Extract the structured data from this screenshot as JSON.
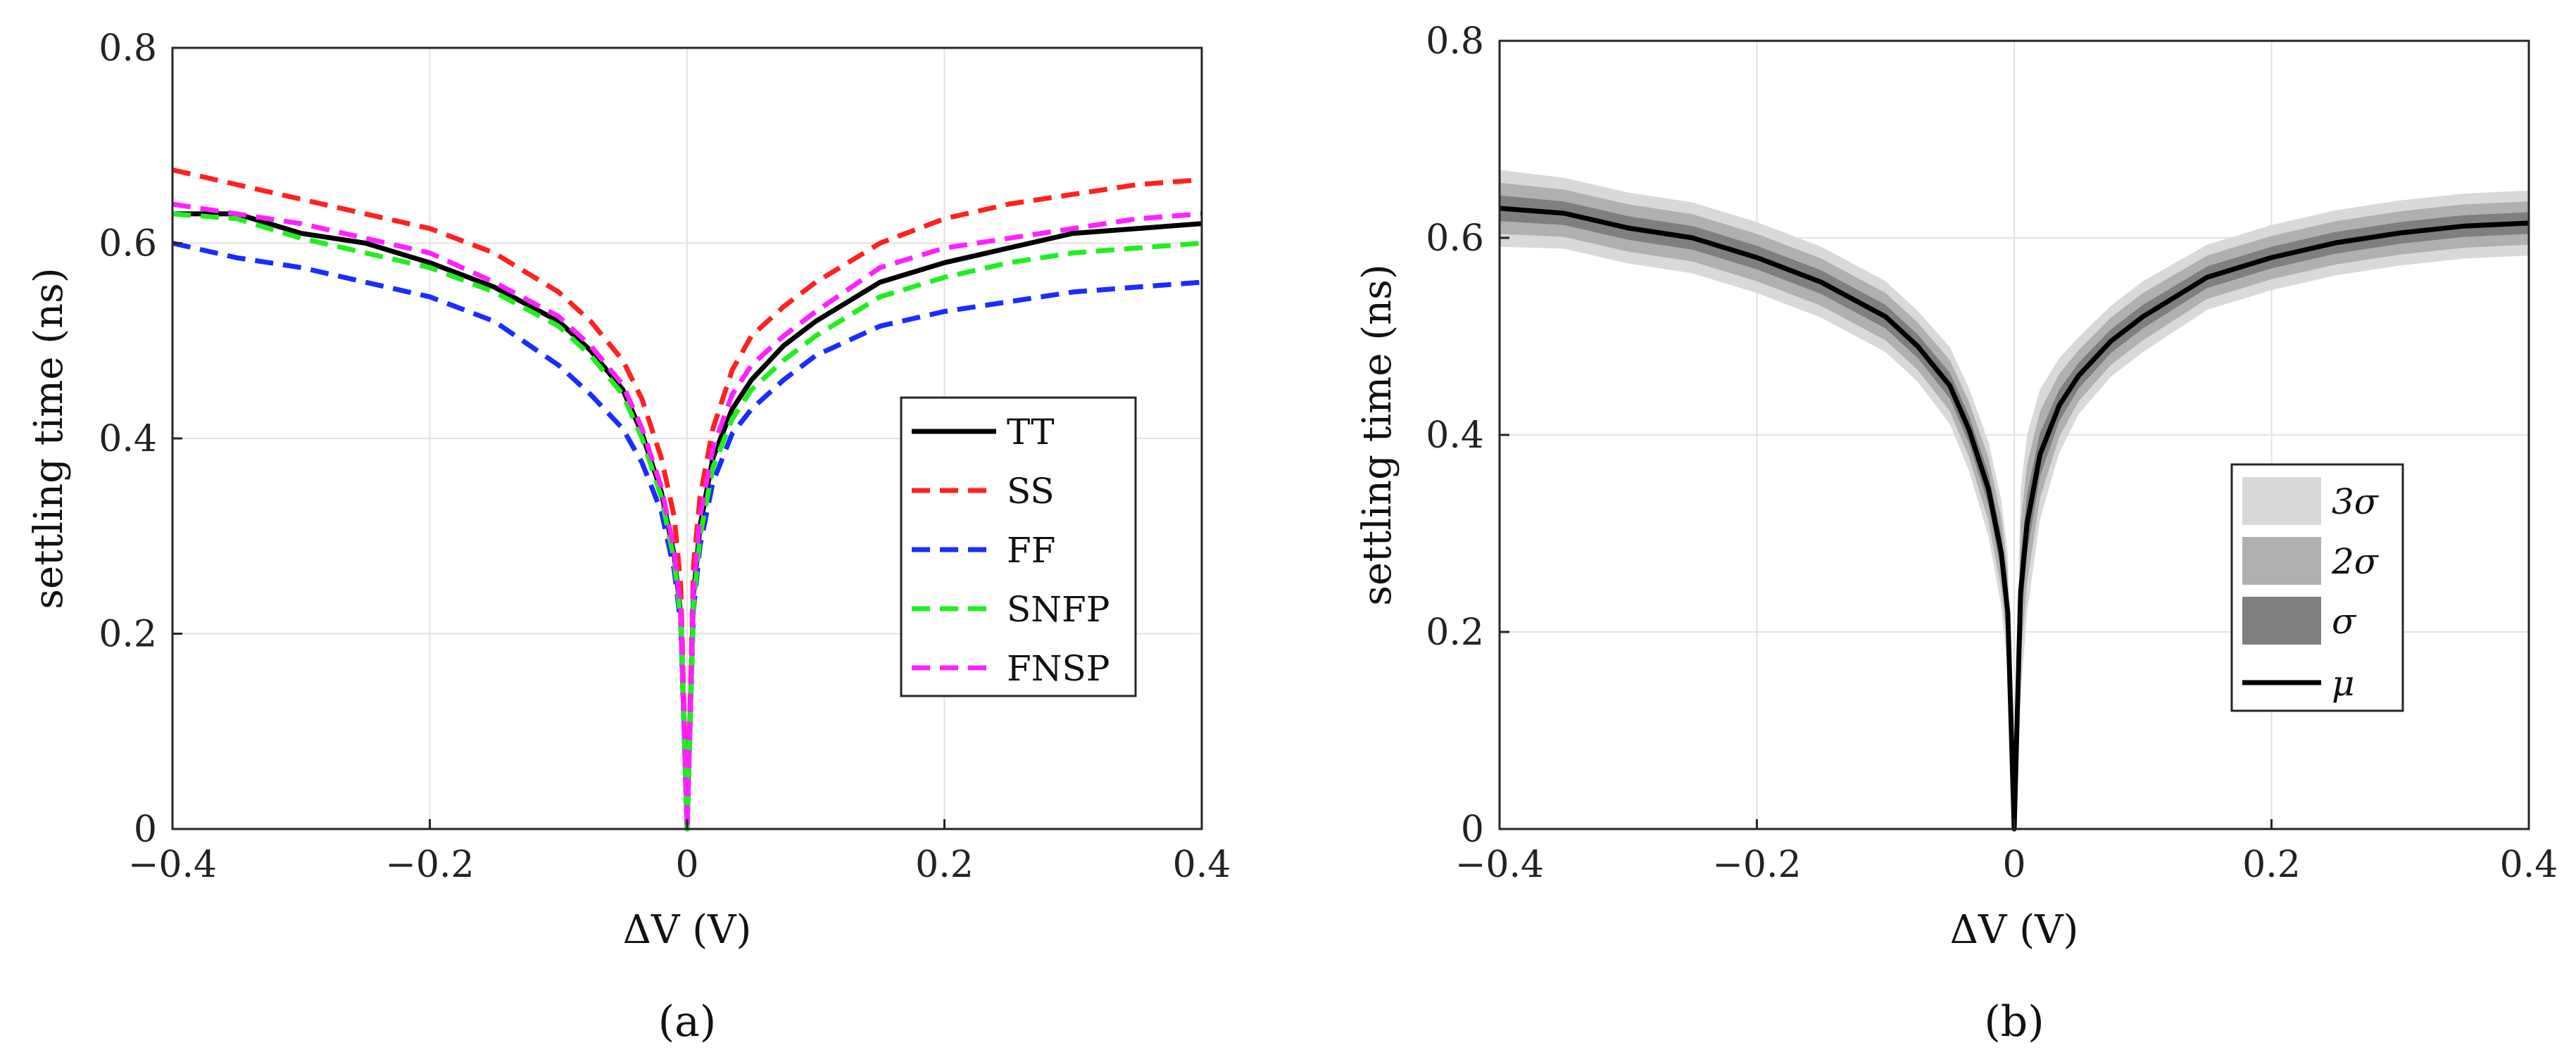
{
  "chart_data": [
    {
      "panel": "a",
      "caption": "(a)",
      "type": "line",
      "xlabel": "ΔV (V)",
      "ylabel": "settling time (ns)",
      "xlim": [
        -0.4,
        0.4
      ],
      "ylim": [
        0,
        0.8
      ],
      "xticks": [
        -0.4,
        -0.2,
        0,
        0.2,
        0.4
      ],
      "xtick_labels": [
        "−0.4",
        "−0.2",
        "0",
        "0.2",
        "0.4"
      ],
      "yticks": [
        0,
        0.2,
        0.4,
        0.6,
        0.8
      ],
      "ytick_labels": [
        "0",
        "0.2",
        "0.4",
        "0.6",
        "0.8"
      ],
      "grid": true,
      "legend_position": "center-right",
      "x": [
        -0.4,
        -0.35,
        -0.3,
        -0.25,
        -0.2,
        -0.15,
        -0.1,
        -0.075,
        -0.05,
        -0.035,
        -0.02,
        -0.01,
        -0.005,
        0,
        0.005,
        0.01,
        0.02,
        0.035,
        0.05,
        0.075,
        0.1,
        0.15,
        0.2,
        0.25,
        0.3,
        0.35,
        0.4
      ],
      "series": [
        {
          "name": "TT",
          "color": "#000000",
          "dash": "solid",
          "values": [
            0.63,
            0.63,
            0.61,
            0.6,
            0.58,
            0.555,
            0.52,
            0.49,
            0.45,
            0.405,
            0.345,
            0.28,
            0.22,
            0.0,
            0.24,
            0.31,
            0.38,
            0.43,
            0.46,
            0.495,
            0.52,
            0.56,
            0.58,
            0.595,
            0.61,
            0.615,
            0.62
          ]
        },
        {
          "name": "SS",
          "color": "#ff2020",
          "dash": "dashed",
          "values": [
            0.675,
            0.66,
            0.645,
            0.63,
            0.615,
            0.59,
            0.55,
            0.52,
            0.48,
            0.44,
            0.38,
            0.32,
            0.25,
            0.0,
            0.27,
            0.34,
            0.41,
            0.47,
            0.505,
            0.535,
            0.56,
            0.6,
            0.625,
            0.64,
            0.65,
            0.66,
            0.665
          ]
        },
        {
          "name": "FF",
          "color": "#1a2cff",
          "dash": "dashed",
          "values": [
            0.6,
            0.585,
            0.575,
            0.56,
            0.545,
            0.52,
            0.475,
            0.445,
            0.41,
            0.375,
            0.325,
            0.265,
            0.21,
            0.0,
            0.225,
            0.29,
            0.355,
            0.405,
            0.43,
            0.46,
            0.485,
            0.515,
            0.53,
            0.54,
            0.55,
            0.555,
            0.56
          ]
        },
        {
          "name": "SNFP",
          "color": "#20ee20",
          "dash": "dashed",
          "values": [
            0.63,
            0.625,
            0.605,
            0.59,
            0.575,
            0.55,
            0.515,
            0.485,
            0.445,
            0.4,
            0.34,
            0.275,
            0.215,
            0.0,
            0.23,
            0.3,
            0.37,
            0.42,
            0.45,
            0.48,
            0.505,
            0.545,
            0.565,
            0.58,
            0.59,
            0.595,
            0.6
          ]
        },
        {
          "name": "FNSP",
          "color": "#ff20ff",
          "dash": "dashed",
          "values": [
            0.64,
            0.63,
            0.62,
            0.605,
            0.59,
            0.56,
            0.525,
            0.495,
            0.455,
            0.41,
            0.35,
            0.285,
            0.225,
            0.0,
            0.245,
            0.32,
            0.39,
            0.445,
            0.475,
            0.505,
            0.53,
            0.575,
            0.595,
            0.605,
            0.615,
            0.625,
            0.63
          ]
        }
      ]
    },
    {
      "panel": "b",
      "caption": "(b)",
      "type": "area",
      "xlabel": "ΔV (V)",
      "ylabel": "settling time (ns)",
      "xlim": [
        -0.4,
        0.4
      ],
      "ylim": [
        0,
        0.8
      ],
      "xticks": [
        -0.4,
        -0.2,
        0,
        0.2,
        0.4
      ],
      "xtick_labels": [
        "−0.4",
        "−0.2",
        "0",
        "0.2",
        "0.4"
      ],
      "yticks": [
        0,
        0.2,
        0.4,
        0.6,
        0.8
      ],
      "ytick_labels": [
        "0",
        "0.2",
        "0.4",
        "0.6",
        "0.8"
      ],
      "grid": true,
      "legend_position": "lower-right",
      "x": [
        -0.4,
        -0.35,
        -0.3,
        -0.25,
        -0.2,
        -0.15,
        -0.1,
        -0.075,
        -0.05,
        -0.035,
        -0.02,
        -0.01,
        -0.005,
        0,
        0.005,
        0.01,
        0.02,
        0.035,
        0.05,
        0.075,
        0.1,
        0.15,
        0.2,
        0.25,
        0.3,
        0.35,
        0.4
      ],
      "mean": [
        0.63,
        0.625,
        0.61,
        0.6,
        0.58,
        0.555,
        0.52,
        0.49,
        0.45,
        0.405,
        0.345,
        0.28,
        0.22,
        0.0,
        0.24,
        0.31,
        0.38,
        0.43,
        0.46,
        0.495,
        0.52,
        0.56,
        0.58,
        0.595,
        0.605,
        0.612,
        0.615
      ],
      "sigma": [
        0.013,
        0.012,
        0.012,
        0.012,
        0.012,
        0.012,
        0.012,
        0.012,
        0.013,
        0.014,
        0.016,
        0.018,
        0.02,
        0.01,
        0.035,
        0.03,
        0.022,
        0.016,
        0.013,
        0.012,
        0.012,
        0.011,
        0.011,
        0.011,
        0.011,
        0.011,
        0.011
      ],
      "bands": [
        {
          "name": "3σ",
          "multiplier": 3,
          "color": "#d9d9d9"
        },
        {
          "name": "2σ",
          "multiplier": 2,
          "color": "#b0b0b0"
        },
        {
          "name": "σ",
          "multiplier": 1,
          "color": "#7f7f7f"
        }
      ],
      "mean_series": {
        "name": "μ",
        "color": "#000000"
      }
    }
  ]
}
